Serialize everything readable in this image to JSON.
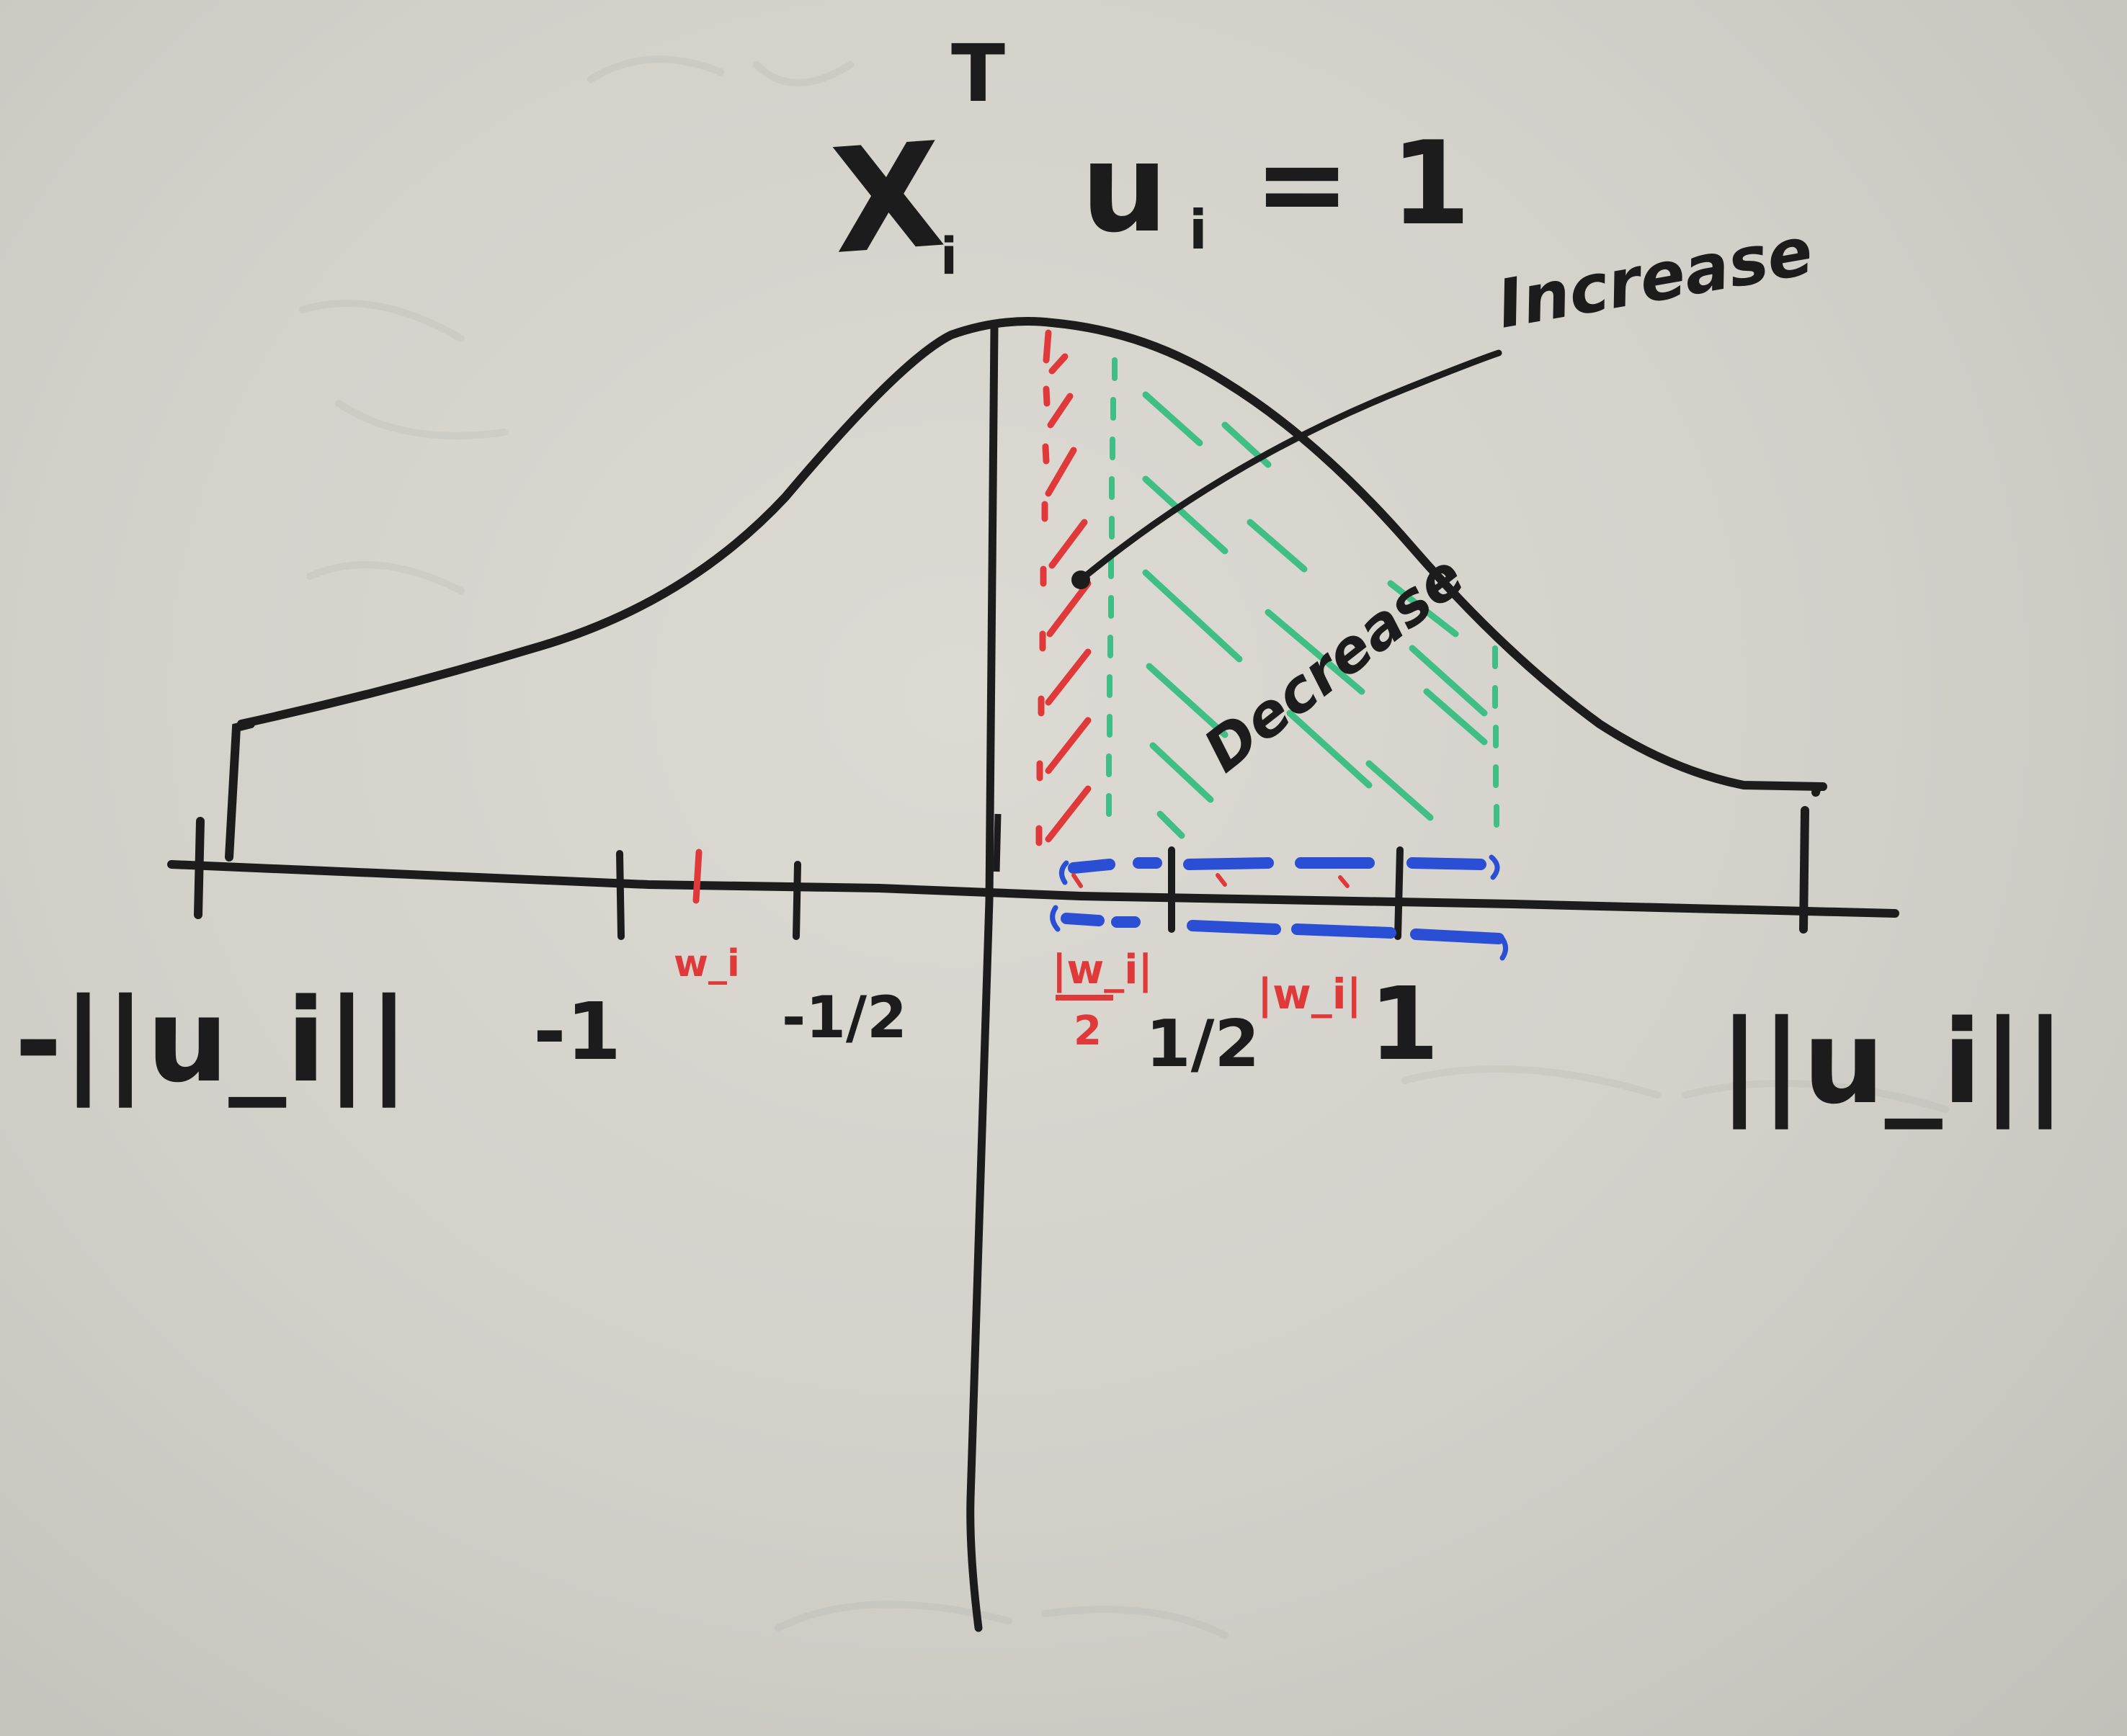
{
  "title": "X_i^T u_i = 1",
  "title_parts": {
    "x": "X",
    "sub": "i",
    "sup": "T",
    "u": "u",
    "u_sub": "i",
    "eq": "= 1"
  },
  "annotations": {
    "increase": "Increase",
    "decrease": "Decrease"
  },
  "axis_labels": {
    "left_end": "-||u_i||",
    "right_end": "||u_i||",
    "neg_one": "-1",
    "neg_half": "-1/2",
    "pos_half": "1/2",
    "pos_one": "1",
    "red_neg": "w_i",
    "red_half_top": "|w_i|",
    "red_half_bottom": "2",
    "red_full": "|w_i|"
  },
  "colors": {
    "ink_black": "#1c1c1c",
    "ink_red": "#e0393a",
    "ink_green": "#3fbf86",
    "ink_blue": "#2a4fd4",
    "board": "#d4d2cb"
  }
}
